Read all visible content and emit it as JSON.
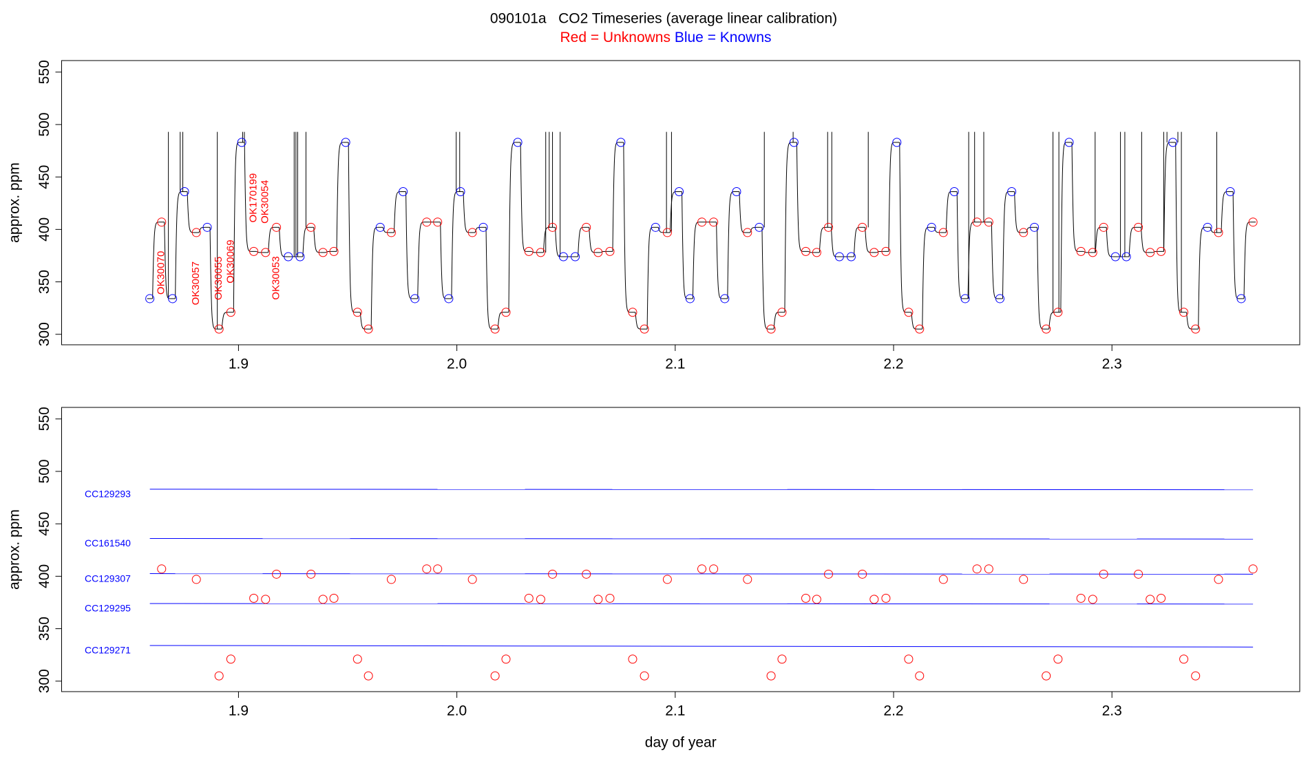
{
  "chart_data": [
    {
      "type": "line",
      "title": "090101a   CO2 Timeseries (average linear calibration)",
      "subtitle": [
        {
          "text": "Red = Unknowns",
          "color": "red"
        },
        {
          "text": "Blue = Knowns",
          "color": "blue"
        }
      ],
      "ylabel": "approx. ppm",
      "line_color": "black",
      "x": [
        1.8594,
        1.8648,
        1.8698,
        1.8753,
        1.8807,
        1.8857,
        1.8911,
        1.8965,
        1.9015,
        1.907,
        1.9124,
        1.9174,
        1.9228,
        1.9282,
        1.9332,
        1.9387,
        1.9437,
        1.9491,
        1.9545,
        1.9595,
        1.9649,
        1.97,
        1.9754,
        1.9808,
        1.9862,
        1.9912,
        1.9963,
        2.0017,
        2.0071,
        2.0121,
        2.0175,
        2.0225,
        2.0279,
        2.033,
        2.0384,
        2.0438,
        2.0488,
        2.0542,
        2.0593,
        2.0647,
        2.0701,
        2.0751,
        2.0805,
        2.0859,
        2.091,
        2.0964,
        2.1018,
        2.1068,
        2.1122,
        2.1176,
        2.1227,
        2.1281,
        2.1331,
        2.1385,
        2.1439,
        2.1489,
        2.1544,
        2.1598,
        2.1648,
        2.1702,
        2.1752,
        2.1806,
        2.1857,
        2.1911,
        2.1965,
        2.2015,
        2.2069,
        2.2119,
        2.2174,
        2.2228,
        2.2278,
        2.2328,
        2.2382,
        2.2436,
        2.2487,
        2.2541,
        2.2595,
        2.2645,
        2.2699,
        2.2753,
        2.2804,
        2.2858,
        2.2912,
        2.2962,
        2.3016,
        2.3066,
        2.3121,
        2.3175,
        2.3225,
        2.3279,
        2.3329,
        2.3383,
        2.3438,
        2.3488,
        2.3542,
        2.3592,
        2.3646
      ],
      "values": [
        334,
        407,
        334,
        436,
        397,
        402,
        305,
        321,
        483,
        379,
        378,
        402,
        374,
        374,
        402,
        378,
        379,
        483,
        321,
        305,
        402,
        397,
        436,
        334,
        407,
        407,
        334,
        436,
        397,
        402,
        305,
        321,
        483,
        379,
        378,
        402,
        374,
        374,
        402,
        378,
        379,
        483,
        321,
        305,
        402,
        397,
        436,
        334,
        407,
        407,
        334,
        436,
        397,
        402,
        305,
        321,
        483,
        379,
        378,
        402,
        374,
        374,
        402,
        378,
        379,
        483,
        321,
        305,
        402,
        397,
        436,
        334,
        407,
        407,
        334,
        436,
        397,
        402,
        305,
        321,
        483,
        379,
        378,
        402,
        374,
        374,
        402,
        378,
        379,
        483,
        321,
        305,
        402,
        397,
        436,
        334,
        407
      ],
      "marker_colors": [
        "blue",
        "red",
        "blue",
        "blue",
        "red",
        "blue",
        "red",
        "red",
        "blue",
        "red",
        "red",
        "red",
        "blue",
        "blue",
        "red",
        "red",
        "red",
        "blue",
        "red",
        "red",
        "blue",
        "red",
        "blue",
        "blue",
        "red",
        "red",
        "blue",
        "blue",
        "red",
        "blue",
        "red",
        "red",
        "blue",
        "red",
        "red",
        "red",
        "blue",
        "blue",
        "red",
        "red",
        "red",
        "blue",
        "red",
        "red",
        "blue",
        "red",
        "blue",
        "blue",
        "red",
        "red",
        "blue",
        "blue",
        "red",
        "blue",
        "red",
        "red",
        "blue",
        "red",
        "red",
        "red",
        "blue",
        "blue",
        "red",
        "red",
        "red",
        "blue",
        "red",
        "red",
        "blue",
        "red",
        "blue",
        "blue",
        "red",
        "red",
        "blue",
        "blue",
        "red",
        "blue",
        "red",
        "red",
        "blue",
        "red",
        "red",
        "red",
        "blue",
        "blue",
        "red",
        "red",
        "red",
        "blue",
        "red",
        "red",
        "blue",
        "red",
        "blue",
        "blue",
        "red"
      ],
      "point_labels": [
        null,
        "OK30070",
        null,
        null,
        "OK30057",
        null,
        "OK30055",
        "OK30069",
        null,
        "OK170199",
        "OK30054",
        "OK30053",
        null,
        null,
        null,
        null,
        null,
        null,
        null,
        null,
        null,
        null,
        null,
        null,
        null,
        null,
        null,
        null,
        null,
        null,
        null,
        null,
        null,
        null,
        null,
        null,
        null,
        null,
        null,
        null,
        null,
        null,
        null,
        null,
        null,
        null,
        null,
        null,
        null,
        null,
        null,
        null,
        null,
        null,
        null,
        null,
        null,
        null,
        null,
        null,
        null,
        null,
        null,
        null,
        null,
        null,
        null,
        null,
        null,
        null,
        null,
        null,
        null,
        null,
        null,
        null,
        null,
        null,
        null,
        null,
        null,
        null,
        null,
        null,
        null,
        null,
        null,
        null,
        null,
        null,
        null,
        null,
        null,
        null,
        null,
        null,
        null
      ],
      "label_color": "red",
      "spikes_x": [
        1.8679,
        1.8733,
        1.8745,
        1.8903,
        1.9019,
        1.9027,
        1.9255,
        1.9263,
        1.9271,
        1.9309,
        1.9997,
        2.0013,
        2.0407,
        2.0423,
        2.0438,
        2.0473,
        2.096,
        2.0983,
        2.1408,
        2.154,
        2.1698,
        2.1717,
        2.1884,
        2.2344,
        2.2371,
        2.2413,
        2.273,
        2.2757,
        2.2923,
        2.3039,
        2.3059,
        2.3136,
        2.3237,
        2.3252,
        2.3302,
        2.3318,
        2.348
      ],
      "spike_top": 493,
      "xlim": [
        1.819,
        2.386
      ],
      "ylim": [
        290,
        561
      ],
      "xticks": [
        1.9,
        {
          "value": 2,
          "label": "2.0"
        },
        2.1,
        2.2,
        2.3
      ],
      "yticks": [
        300,
        350,
        400,
        450,
        500,
        550
      ]
    },
    {
      "type": "scatter",
      "ylabel": "approx. ppm",
      "xlabel": "day of year",
      "color": "red",
      "x": [
        1.8648,
        1.8807,
        1.8911,
        1.8965,
        1.907,
        1.9124,
        1.9174,
        1.9332,
        1.9387,
        1.9437,
        1.9545,
        1.9595,
        1.97,
        1.9862,
        1.9912,
        2.0071,
        2.0175,
        2.0225,
        2.033,
        2.0384,
        2.0438,
        2.0593,
        2.0647,
        2.0701,
        2.0805,
        2.0859,
        2.0964,
        2.1122,
        2.1176,
        2.1331,
        2.1439,
        2.1489,
        2.1598,
        2.1648,
        2.1702,
        2.1857,
        2.1911,
        2.1965,
        2.2069,
        2.2119,
        2.2228,
        2.2382,
        2.2436,
        2.2595,
        2.2699,
        2.2753,
        2.2858,
        2.2912,
        2.2962,
        2.3121,
        2.3175,
        2.3225,
        2.3329,
        2.3383,
        2.3488,
        2.3646
      ],
      "values": [
        407,
        397,
        305,
        321,
        379,
        378,
        402,
        402,
        378,
        379,
        321,
        305,
        397,
        407,
        407,
        397,
        305,
        321,
        379,
        378,
        402,
        402,
        378,
        379,
        321,
        305,
        397,
        407,
        407,
        397,
        305,
        321,
        379,
        378,
        402,
        402,
        378,
        379,
        321,
        305,
        397,
        407,
        407,
        397,
        305,
        321,
        379,
        378,
        402,
        402,
        378,
        379,
        321,
        305,
        397,
        407
      ],
      "reference_lines": [
        {
          "label": "CC129293",
          "color": "blue",
          "x": [
            1.8594,
            2.3646
          ],
          "values": [
            483,
            482.5
          ]
        },
        {
          "label": "CC161540",
          "color": "blue",
          "x": [
            1.8594,
            2.3646
          ],
          "values": [
            436,
            435.5
          ]
        },
        {
          "label": "CC129307",
          "color": "blue",
          "x": [
            1.8594,
            2.3646
          ],
          "values": [
            402.5,
            402
          ]
        },
        {
          "label": "CC129295",
          "color": "blue",
          "x": [
            1.8594,
            2.3646
          ],
          "values": [
            374,
            373.5
          ]
        },
        {
          "label": "CC129271",
          "color": "blue",
          "x": [
            1.8594,
            2.3646
          ],
          "values": [
            334,
            332.5
          ]
        }
      ],
      "xlim": [
        1.819,
        2.386
      ],
      "ylim": [
        290,
        561
      ],
      "xticks": [
        1.9,
        {
          "value": 2,
          "label": "2.0"
        },
        2.1,
        2.2,
        2.3
      ],
      "yticks": [
        300,
        350,
        400,
        450,
        500,
        550
      ]
    }
  ]
}
